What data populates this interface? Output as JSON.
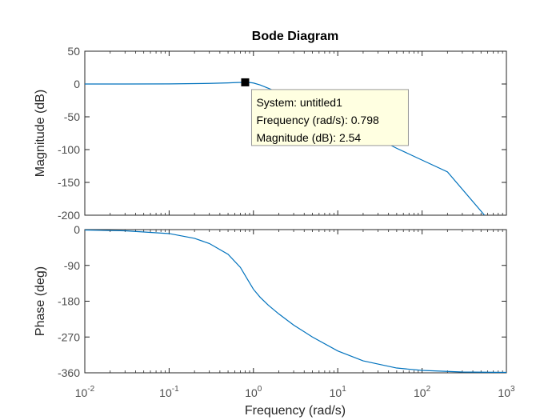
{
  "chart_data": {
    "type": "line",
    "title": "Bode Diagram",
    "xlabel": "Frequency  (rad/s)",
    "xscale": "log",
    "xlim": [
      0.01,
      1000
    ],
    "x_ticks": [
      {
        "value": 0.01,
        "base": "10",
        "exp": "-2"
      },
      {
        "value": 0.1,
        "base": "10",
        "exp": "-1"
      },
      {
        "value": 1,
        "base": "10",
        "exp": "0"
      },
      {
        "value": 10,
        "base": "10",
        "exp": "1"
      },
      {
        "value": 100,
        "base": "10",
        "exp": "2"
      },
      {
        "value": 1000,
        "base": "10",
        "exp": "3"
      }
    ],
    "colors": {
      "line": "#0072bd",
      "axes": "#262626",
      "grid_minor": "#c8c8c8",
      "tooltip_bg": "#ffffe1",
      "tooltip_border": "#9a9a9a",
      "marker": "#000000"
    },
    "panels": [
      {
        "id": "magnitude",
        "ylabel": "Magnitude (dB)",
        "ylim": [
          -200,
          50
        ],
        "yticks": [
          50,
          0,
          -50,
          -100,
          -150,
          -200
        ],
        "ytick_labels": [
          "50",
          "0",
          "-50",
          "-100",
          "-150",
          "-200"
        ],
        "series": [
          {
            "x": [
              0.01,
              0.03,
              0.1,
              0.3,
              0.5,
              0.65,
              0.798,
              0.9,
              1.0,
              1.2,
              1.5,
              2,
              3,
              5,
              10,
              20,
              50,
              100,
              200,
              550
            ],
            "y": [
              0,
              0.02,
              0.15,
              0.9,
              1.7,
              2.3,
              2.54,
              2.3,
              1.5,
              -1.5,
              -6.5,
              -13,
              -23,
              -35,
              -53,
              -72,
              -98,
              -116,
              -134,
              -200
            ]
          }
        ]
      },
      {
        "id": "phase",
        "ylabel": "Phase (deg)",
        "ylim": [
          -360,
          0
        ],
        "yticks": [
          0,
          -90,
          -180,
          -270,
          -360
        ],
        "ytick_labels": [
          "0",
          "-90",
          "-180",
          "-270",
          "-360"
        ],
        "series": [
          {
            "x": [
              0.01,
              0.03,
              0.1,
              0.2,
              0.3,
              0.5,
              0.7,
              0.85,
              1.0,
              1.2,
              1.5,
              2,
              3,
              5,
              10,
              20,
              50,
              100,
              300,
              1000
            ],
            "y": [
              -1,
              -3,
              -10,
              -22,
              -35,
              -62,
              -95,
              -125,
              -150,
              -170,
              -190,
              -212,
              -240,
              -270,
              -305,
              -330,
              -348,
              -354,
              -358,
              -359
            ]
          }
        ]
      }
    ],
    "datatip": {
      "x": 0.798,
      "y": 2.54,
      "lines": [
        "System: untitled1",
        "Frequency (rad/s): 0.798",
        "Magnitude (dB): 2.54"
      ]
    }
  }
}
